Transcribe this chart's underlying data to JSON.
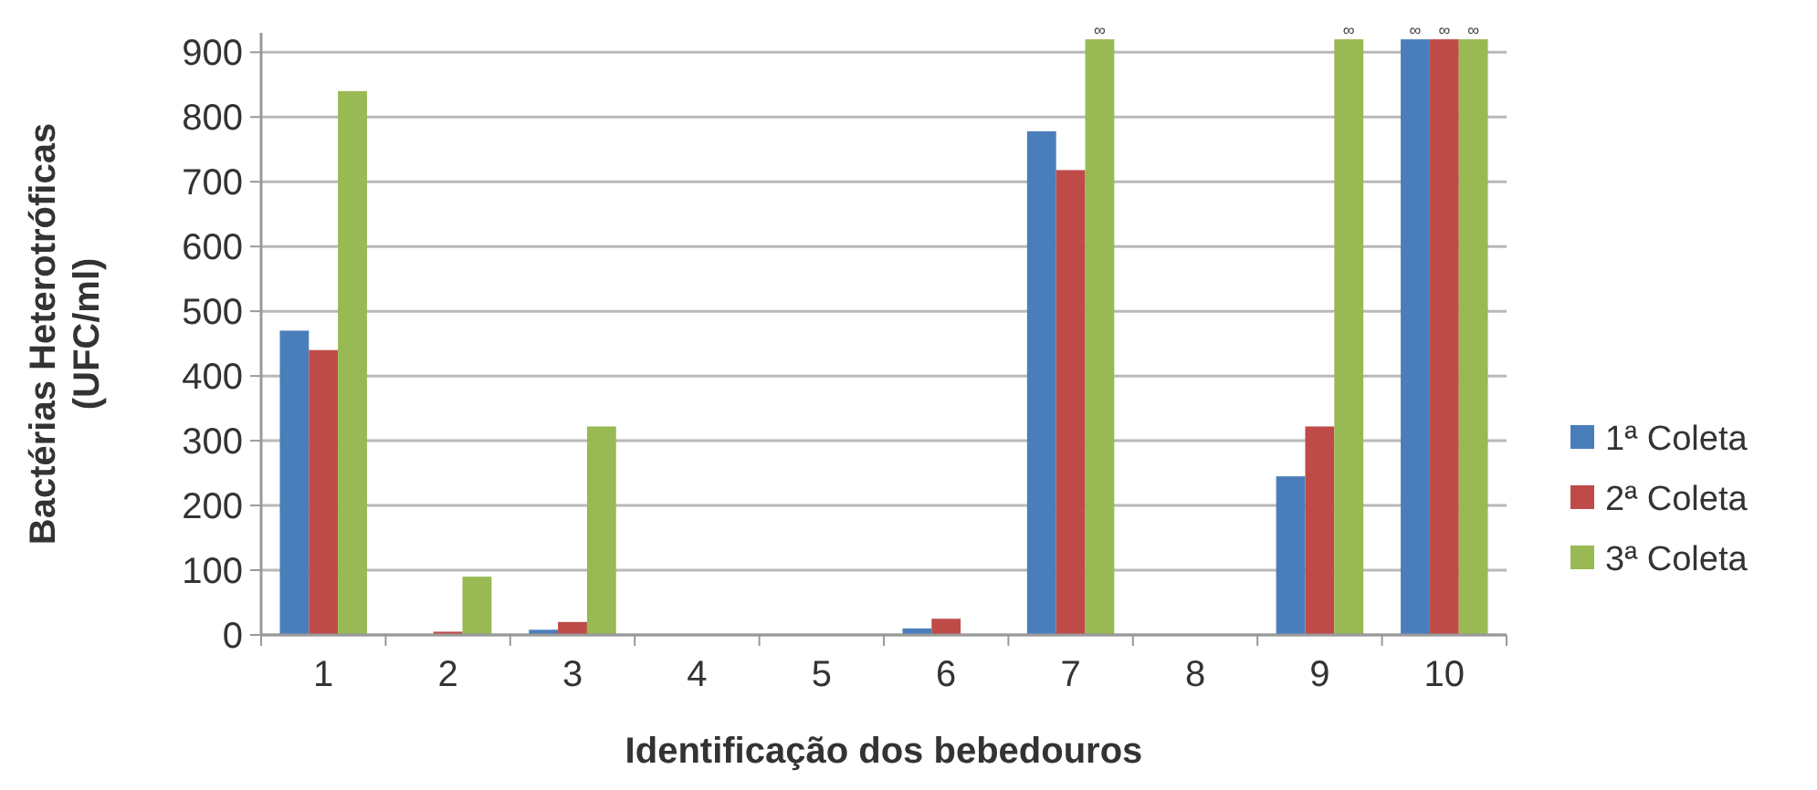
{
  "chart_data": {
    "type": "bar",
    "xlabel": "Identificação dos bebedouros",
    "ylabel": "Bactérias  Heterotróficas\n(UFC/ml)",
    "categories": [
      "1",
      "2",
      "3",
      "4",
      "5",
      "6",
      "7",
      "8",
      "9",
      "10"
    ],
    "series": [
      {
        "name": "1ª Coleta",
        "color": "#4a7ebb",
        "values": [
          470,
          0,
          8,
          0,
          0,
          10,
          778,
          0,
          245,
          920
        ],
        "value_labels": [
          null,
          null,
          null,
          null,
          null,
          null,
          null,
          null,
          null,
          "∞"
        ]
      },
      {
        "name": "2ª Coleta",
        "color": "#be4b48",
        "values": [
          440,
          5,
          20,
          0,
          0,
          25,
          718,
          0,
          322,
          920
        ],
        "value_labels": [
          null,
          null,
          null,
          null,
          null,
          null,
          null,
          null,
          null,
          "∞"
        ]
      },
      {
        "name": "3ª Coleta",
        "color": "#98b954",
        "values": [
          840,
          90,
          322,
          0,
          null,
          null,
          920,
          0,
          920,
          920
        ],
        "value_labels": [
          null,
          null,
          null,
          null,
          null,
          null,
          "∞",
          null,
          "∞",
          "∞"
        ]
      }
    ],
    "ylim": [
      0,
      930
    ],
    "yticks": [
      0,
      100,
      200,
      300,
      400,
      500,
      600,
      700,
      800,
      900
    ],
    "grid": "y",
    "legend": "right"
  }
}
